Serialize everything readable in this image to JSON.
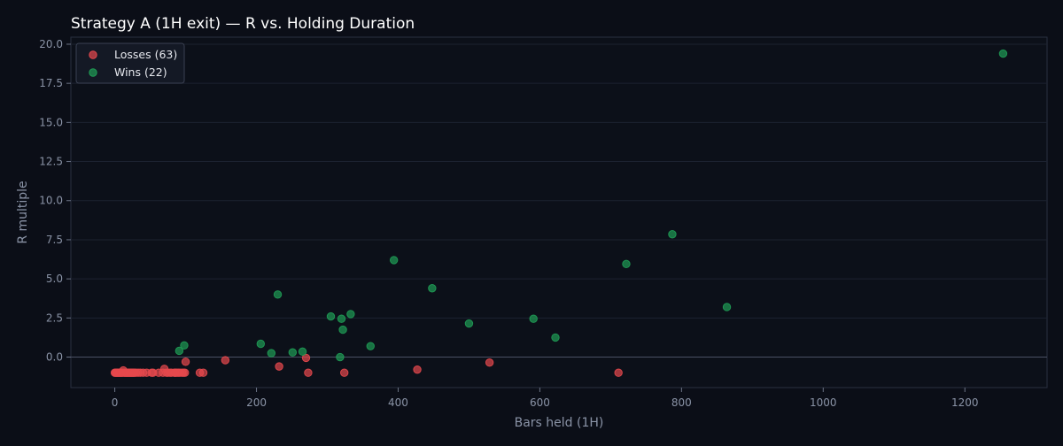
{
  "chart_data": {
    "type": "scatter",
    "title": "Strategy A (1H exit) — R vs. Holding Duration",
    "xlabel": "Bars held (1H)",
    "ylabel": "R multiple",
    "xlim": [
      -62,
      1316
    ],
    "ylim": [
      -1.95,
      20.45
    ],
    "xticks": [
      0,
      200,
      400,
      600,
      800,
      1000,
      1200
    ],
    "xtick_labels": [
      "0",
      "200",
      "400",
      "600",
      "800",
      "1000",
      "1200"
    ],
    "yticks": [
      0.0,
      2.5,
      5.0,
      7.5,
      10.0,
      12.5,
      15.0,
      17.5,
      20.0
    ],
    "ytick_labels": [
      "0.0",
      "2.5",
      "5.0",
      "7.5",
      "10.0",
      "12.5",
      "15.0",
      "17.5",
      "20.0"
    ],
    "grid": true,
    "zero_line": 0,
    "legend_position": "top-left",
    "series": [
      {
        "name": "Losses (63)",
        "color": "#e5484d",
        "points": [
          [
            0,
            -1.0
          ],
          [
            1,
            -1.0
          ],
          [
            2,
            -1.0
          ],
          [
            3,
            -1.0
          ],
          [
            4,
            -1.0
          ],
          [
            5,
            -1.0
          ],
          [
            6,
            -1.0
          ],
          [
            7,
            -1.0
          ],
          [
            8,
            -1.0
          ],
          [
            9,
            -1.0
          ],
          [
            10,
            -1.0
          ],
          [
            11,
            -1.0
          ],
          [
            12,
            -0.85
          ],
          [
            13,
            -1.0
          ],
          [
            14,
            -1.0
          ],
          [
            15,
            -1.0
          ],
          [
            16,
            -1.0
          ],
          [
            17,
            -1.0
          ],
          [
            18,
            -1.0
          ],
          [
            19,
            -1.0
          ],
          [
            20,
            -1.0
          ],
          [
            21,
            -1.0
          ],
          [
            22,
            -1.0
          ],
          [
            23,
            -1.0
          ],
          [
            24,
            -1.0
          ],
          [
            25,
            -1.0
          ],
          [
            26,
            -1.0
          ],
          [
            27,
            -1.0
          ],
          [
            28,
            -1.0
          ],
          [
            30,
            -1.0
          ],
          [
            33,
            -1.0
          ],
          [
            36,
            -1.0
          ],
          [
            40,
            -1.0
          ],
          [
            52,
            -1.0
          ],
          [
            54,
            -1.0
          ],
          [
            62,
            -1.0
          ],
          [
            68,
            -1.0
          ],
          [
            70,
            -0.75
          ],
          [
            73,
            -1.0
          ],
          [
            75,
            -1.0
          ],
          [
            78,
            -1.0
          ],
          [
            80,
            -1.0
          ],
          [
            84,
            -1.0
          ],
          [
            86,
            -1.0
          ],
          [
            88,
            -1.0
          ],
          [
            90,
            -1.0
          ],
          [
            92,
            -1.0
          ],
          [
            95,
            -1.0
          ],
          [
            97,
            -1.0
          ],
          [
            99,
            -1.0
          ],
          [
            100,
            -0.3
          ],
          [
            120,
            -1.0
          ],
          [
            125,
            -1.0
          ],
          [
            156,
            -0.2
          ],
          [
            232,
            -0.6
          ],
          [
            270,
            -0.05
          ],
          [
            273,
            -1.0
          ],
          [
            324,
            -1.0
          ],
          [
            427,
            -0.8
          ],
          [
            529,
            -0.35
          ],
          [
            711,
            -1.0
          ],
          [
            85,
            -1.0
          ],
          [
            45,
            -1.0
          ]
        ]
      },
      {
        "name": "Wins (22)",
        "color": "#1f9d55",
        "points": [
          [
            91,
            0.4
          ],
          [
            98,
            0.75
          ],
          [
            206,
            0.85
          ],
          [
            221,
            0.25
          ],
          [
            230,
            4.0
          ],
          [
            251,
            0.3
          ],
          [
            265,
            0.35
          ],
          [
            305,
            2.6
          ],
          [
            318,
            0.0
          ],
          [
            320,
            2.45
          ],
          [
            322,
            1.75
          ],
          [
            333,
            2.75
          ],
          [
            361,
            0.7
          ],
          [
            394,
            6.2
          ],
          [
            448,
            4.4
          ],
          [
            500,
            2.15
          ],
          [
            591,
            2.45
          ],
          [
            622,
            1.25
          ],
          [
            722,
            5.95
          ],
          [
            787,
            7.85
          ],
          [
            864,
            3.2
          ],
          [
            1254,
            19.4
          ]
        ]
      }
    ]
  }
}
